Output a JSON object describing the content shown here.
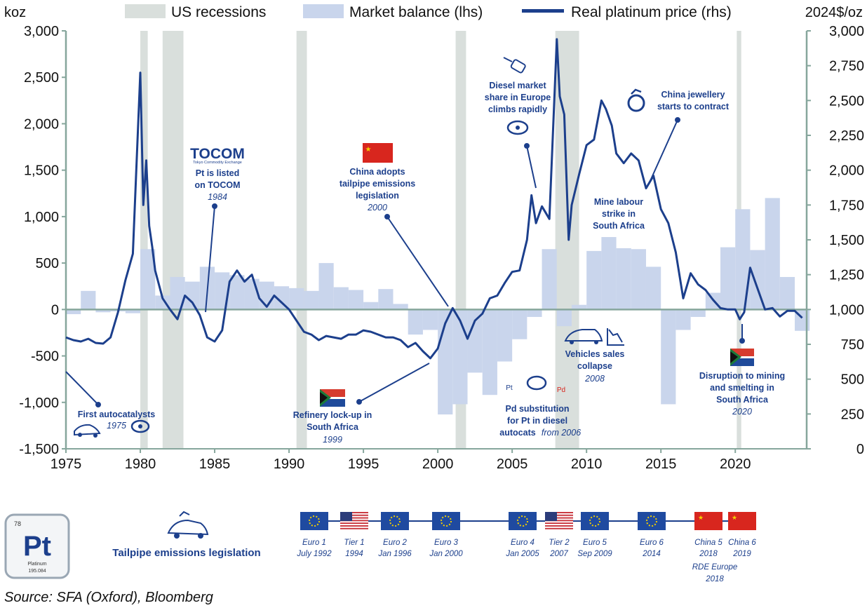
{
  "chart_data": {
    "type": "bar+line",
    "left_axis": {
      "unit": "koz",
      "ylim": [
        -1500,
        3000
      ],
      "ticks": [
        "3,000",
        "2,500",
        "2,000",
        "1,500",
        "1,000",
        "500",
        "0",
        "-500",
        "-1,000",
        "-1,500"
      ]
    },
    "right_axis": {
      "unit": "2024$/oz",
      "ylim": [
        0,
        3000
      ],
      "ticks": [
        "3,000",
        "2,750",
        "2,500",
        "2,250",
        "2,000",
        "1,750",
        "1,500",
        "1,250",
        "1,000",
        "750",
        "500",
        "250",
        "0"
      ]
    },
    "x_ticks": [
      "1975",
      "1980",
      "1985",
      "1990",
      "1995",
      "2000",
      "2005",
      "2010",
      "2015",
      "2020"
    ],
    "xlim": [
      1975,
      2024.8
    ],
    "legend": [
      "US recessions",
      "Market balance (lhs)",
      "Real platinum price (rhs)"
    ],
    "recessions": [
      [
        1980.0,
        1980.5
      ],
      [
        1981.5,
        1982.9
      ],
      [
        1990.5,
        1991.2
      ],
      [
        2001.2,
        2001.9
      ],
      [
        2007.9,
        2009.5
      ],
      [
        2020.1,
        2020.4
      ]
    ],
    "market_balance": {
      "years": [
        1975,
        1976,
        1977,
        1978,
        1979,
        1980,
        1981,
        1982,
        1983,
        1984,
        1985,
        1986,
        1987,
        1988,
        1989,
        1990,
        1991,
        1992,
        1993,
        1994,
        1995,
        1996,
        1997,
        1998,
        1999,
        2000,
        2001,
        2002,
        2003,
        2004,
        2005,
        2006,
        2007,
        2008,
        2009,
        2010,
        2011,
        2012,
        2013,
        2014,
        2015,
        2016,
        2017,
        2018,
        2019,
        2020,
        2021,
        2022,
        2023,
        2024
      ],
      "values": [
        -50,
        200,
        -30,
        -20,
        -40,
        650,
        150,
        350,
        300,
        460,
        400,
        370,
        330,
        300,
        250,
        230,
        200,
        500,
        240,
        210,
        80,
        220,
        60,
        -270,
        -220,
        -1130,
        -1020,
        -680,
        -920,
        -560,
        -320,
        -80,
        650,
        -180,
        50,
        630,
        780,
        660,
        650,
        460,
        -1020,
        -220,
        -80,
        180,
        670,
        1080,
        640,
        1200,
        350,
        -230
      ]
    },
    "price_series": {
      "x": [
        1975,
        1975.5,
        1976,
        1976.5,
        1977,
        1977.5,
        1978,
        1978.5,
        1979,
        1979.5,
        1980,
        1980.2,
        1980.4,
        1980.6,
        1980.8,
        1981,
        1981.5,
        1982,
        1982.5,
        1983,
        1983.5,
        1984,
        1984.5,
        1985,
        1985.5,
        1986,
        1986.5,
        1987,
        1987.5,
        1988,
        1988.5,
        1989,
        1989.5,
        1990,
        1990.5,
        1991,
        1991.5,
        1992,
        1992.5,
        1993,
        1993.5,
        1994,
        1994.5,
        1995,
        1995.5,
        1996,
        1996.5,
        1997,
        1997.5,
        1998,
        1998.5,
        1999,
        1999.5,
        2000,
        2000.5,
        2001,
        2001.5,
        2002,
        2002.5,
        2003,
        2003.5,
        2004,
        2004.5,
        2005,
        2005.5,
        2006,
        2006.3,
        2006.6,
        2007,
        2007.5,
        2008,
        2008.2,
        2008.5,
        2008.8,
        2009,
        2009.5,
        2010,
        2010.5,
        2011,
        2011.3,
        2011.7,
        2012,
        2012.5,
        2013,
        2013.5,
        2014,
        2014.5,
        2015,
        2015.5,
        2016,
        2016.5,
        2017,
        2017.5,
        2018,
        2018.5,
        2019,
        2019.5,
        2020,
        2020.3,
        2020.6,
        2021,
        2021.5,
        2022,
        2022.5,
        2023,
        2023.5,
        2024,
        2024.5
      ],
      "y": [
        800,
        780,
        770,
        790,
        760,
        755,
        800,
        980,
        1210,
        1400,
        2700,
        1750,
        2070,
        1600,
        1450,
        1280,
        1080,
        1000,
        930,
        1100,
        1050,
        960,
        800,
        770,
        850,
        1200,
        1280,
        1200,
        1250,
        1080,
        1020,
        1100,
        1050,
        1000,
        920,
        840,
        820,
        780,
        810,
        800,
        790,
        820,
        820,
        850,
        840,
        820,
        800,
        800,
        780,
        730,
        760,
        700,
        650,
        720,
        900,
        1010,
        920,
        790,
        920,
        970,
        1080,
        1100,
        1190,
        1270,
        1280,
        1500,
        1820,
        1620,
        1740,
        1650,
        2940,
        2530,
        2400,
        1500,
        1750,
        1970,
        2180,
        2220,
        2500,
        2440,
        2320,
        2120,
        2050,
        2120,
        2070,
        1870,
        1960,
        1720,
        1620,
        1410,
        1080,
        1260,
        1180,
        1140,
        1070,
        1010,
        1000,
        1000,
        930,
        980,
        1300,
        1150,
        1000,
        1010,
        950,
        990,
        990,
        940
      ]
    },
    "annotations": [
      {
        "lines": [
          "First autocatalysts"
        ],
        "sub": "1975"
      },
      {
        "lines": [
          "Pt is listed",
          "on TOCOM"
        ],
        "sub": "1984"
      },
      {
        "lines": [
          "Refinery lock-up in",
          "South Africa"
        ],
        "sub": "1999"
      },
      {
        "lines": [
          "China adopts",
          "tailpipe emissions",
          "legislation"
        ],
        "sub": "2000"
      },
      {
        "lines": [
          "Diesel market",
          "share in Europe",
          "climbs rapidly"
        ],
        "sub": ""
      },
      {
        "lines": [
          "Pd substitution",
          "for Pt in diesel"
        ],
        "sub_prefix": "autocats",
        "sub": "from 2006"
      },
      {
        "lines": [
          "Vehicles sales",
          "collapse"
        ],
        "sub": "2008"
      },
      {
        "lines": [
          "Mine labour",
          "strike in",
          "South Africa"
        ],
        "sub": ""
      },
      {
        "lines": [
          "China jewellery",
          "starts to contract"
        ],
        "sub": ""
      },
      {
        "lines": [
          "Disruption to mining",
          "and smelting in",
          "South Africa"
        ],
        "sub": "2020"
      }
    ],
    "icon_labels": {
      "tocom": "TOCOM",
      "tocom_small": "Tokyo Commodity Exchange",
      "pt_pill": "Pt",
      "pd_pill": "Pd"
    },
    "timeline": {
      "title": "Tailpipe emissions legislation",
      "items": [
        {
          "flag": "eu",
          "line1": "Euro 1",
          "line2": "July 1992"
        },
        {
          "flag": "us",
          "line1": "Tier 1",
          "line2": "1994"
        },
        {
          "flag": "eu",
          "line1": "Euro 2",
          "line2": "Jan 1996"
        },
        {
          "flag": "eu",
          "line1": "Euro 3",
          "line2": "Jan 2000"
        },
        {
          "flag": "eu",
          "line1": "Euro 4",
          "line2": "Jan 2005"
        },
        {
          "flag": "us",
          "line1": "Tier 2",
          "line2": "2007"
        },
        {
          "flag": "eu",
          "line1": "Euro 5",
          "line2": "Sep 2009"
        },
        {
          "flag": "eu",
          "line1": "Euro 6",
          "line2": "2014"
        },
        {
          "flag": "cn",
          "line1": "China 5",
          "line2": "2018"
        },
        {
          "flag": "cn",
          "line1": "China 6",
          "line2": "2019"
        }
      ],
      "extra": [
        "RDE Europe",
        "2018"
      ]
    },
    "element_tile": {
      "number": "78",
      "symbol": "Pt",
      "name": "Platinum",
      "mass": "195.084"
    },
    "source": "Source: SFA (Oxford), Bloomberg",
    "colors": {
      "line": "#1c3f8c",
      "bar": "#c9d5ec",
      "recession": "#d9dfdc",
      "axis": "#86a69c",
      "annot": "#1c3f8c"
    }
  }
}
